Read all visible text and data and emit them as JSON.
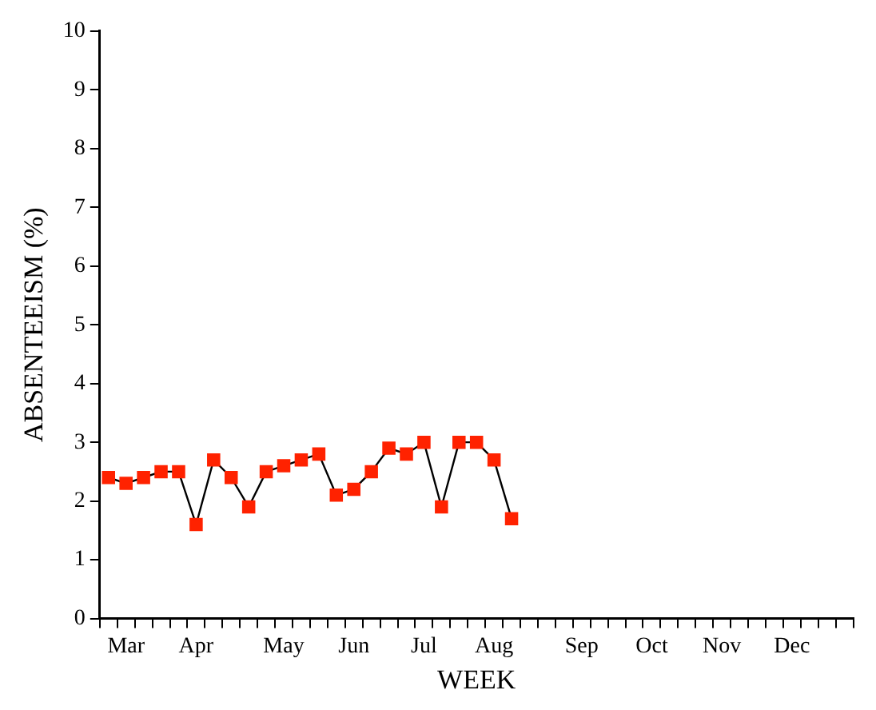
{
  "chart_data": {
    "type": "line",
    "xlabel": "WEEK",
    "ylabel": "ABSENTEEISM (%)",
    "categories": [
      null,
      "Mar",
      null,
      null,
      null,
      "Apr",
      null,
      null,
      null,
      null,
      "May",
      null,
      null,
      null,
      "Jun",
      null,
      null,
      null,
      "Jul",
      null,
      null,
      null,
      "Aug",
      null,
      null,
      null,
      null,
      "Sep",
      null,
      null,
      null,
      "Oct",
      null,
      null,
      null,
      "Nov",
      null,
      null,
      null,
      "Dec",
      null,
      null,
      null
    ],
    "series": [
      {
        "color": "#ff2200",
        "values": [
          2.4,
          2.3,
          2.4,
          2.5,
          2.5,
          1.6,
          2.7,
          2.4,
          1.9,
          2.5,
          2.6,
          2.7,
          2.8,
          2.1,
          2.2,
          2.5,
          2.9,
          2.8,
          3.0,
          1.9,
          3.0,
          3.0,
          2.7,
          1.7,
          null,
          null,
          null,
          null,
          null,
          null,
          null,
          null,
          null,
          null,
          null,
          null,
          null,
          null,
          null,
          null,
          null,
          null,
          null
        ]
      }
    ],
    "ylim": [
      0,
      10
    ],
    "yticks": [
      0,
      1,
      2,
      3,
      4,
      5,
      6,
      7,
      8,
      9,
      10
    ],
    "grid": false,
    "legend": false,
    "marker": "square",
    "line_style": "solid"
  }
}
